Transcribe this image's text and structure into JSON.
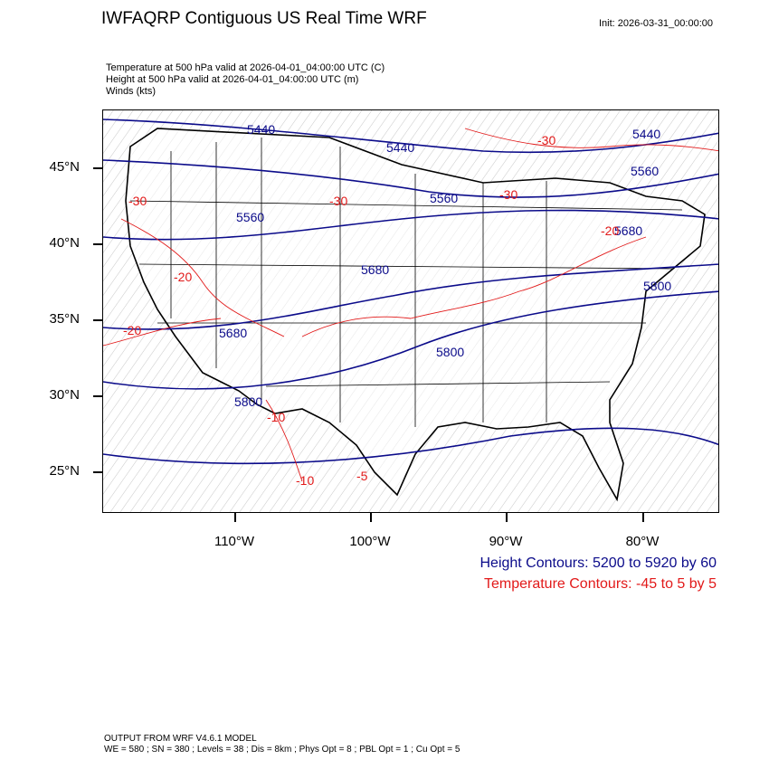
{
  "header": {
    "title": "IWFAQRP Contiguous US Real Time WRF",
    "init": "Init: 2026-03-31_00:00:00"
  },
  "subtitles": [
    "Temperature at 500 hPa valid at 2026-04-01_04:00:00 UTC   (C)",
    "Height at 500 hPa valid at 2026-04-01_04:00:00 UTC   (m)",
    "Winds   (kts)"
  ],
  "map": {
    "lat_labels": [
      "45°N",
      "40°N",
      "35°N",
      "30°N",
      "25°N"
    ],
    "lon_labels": [
      "110°W",
      "100°W",
      "90°W",
      "80°W"
    ],
    "height_contour_labels": [
      "5440",
      "5440",
      "5440",
      "5560",
      "5560",
      "5560",
      "5680",
      "5680",
      "5680",
      "5800",
      "5800",
      "5800"
    ],
    "temp_contour_labels": [
      "-30",
      "-30",
      "-30",
      "-30",
      "-20",
      "-20",
      "-20",
      "-10",
      "-10",
      "-5"
    ],
    "colors": {
      "height": "#0b0b8a",
      "temperature": "#e21a1a",
      "boundaries": "#000000"
    }
  },
  "legend": {
    "height": "Height Contours: 5200 to 5920 by 60",
    "temperature": "Temperature Contours: -45 to 5 by 5"
  },
  "footer": {
    "line1": "OUTPUT FROM WRF V4.6.1 MODEL",
    "line2": "WE = 580 ; SN = 380 ; Levels = 38 ; Dis = 8km ; Phys Opt = 8 ; PBL Opt = 1 ; Cu Opt = 5"
  }
}
